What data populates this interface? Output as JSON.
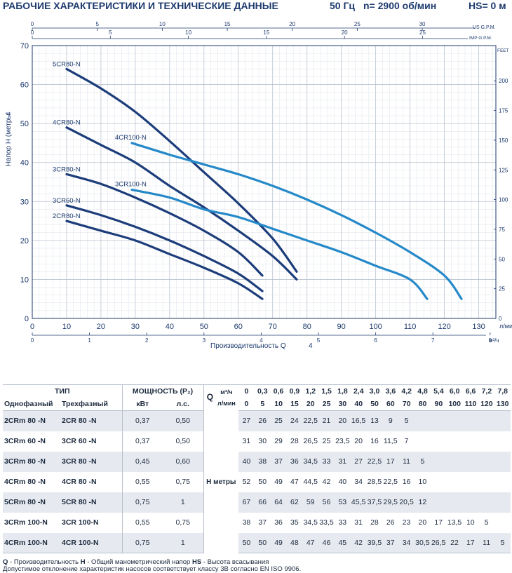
{
  "header": {
    "title": "РАБОЧИЕ ХАРАКТЕРИСТИКИ И ТЕХНИЧЕСКИЕ ДАННЫЕ",
    "freq": "50 Гц",
    "rpm": "n= 2900 об/мин",
    "hs": "HS= 0 м"
  },
  "chart_data": {
    "type": "line",
    "xlabel": "Производительность Q",
    "xlabel_suffix": "4",
    "ylabel": "Напор Н (метры",
    "ylabel_suffix": "4",
    "x_unit": "л/мин",
    "x2_unit": "м³/ч",
    "us_unit": "US G.P.M.",
    "imp_unit": "IMP G.P.M.",
    "feet_unit": "FEET",
    "xlim": [
      0,
      135
    ],
    "ylim": [
      0,
      70
    ],
    "x_ticks": [
      0,
      10,
      20,
      30,
      40,
      50,
      60,
      70,
      80,
      90,
      100,
      110,
      120,
      130
    ],
    "y_ticks": [
      0,
      10,
      20,
      30,
      40,
      50,
      60,
      70
    ],
    "m3h_ticks": [
      0,
      1,
      2,
      3,
      4,
      5,
      6,
      7,
      8
    ],
    "us_ticks": [
      0,
      5,
      10,
      15,
      20,
      25,
      30
    ],
    "imp_ticks": [
      0,
      5,
      10,
      15,
      20,
      25
    ],
    "feet_ticks": [
      0,
      25,
      50,
      75,
      100,
      125,
      150,
      175,
      200
    ],
    "series": [
      {
        "name": "5CR80-N",
        "color": "#1c3d7a",
        "x": [
          10,
          20,
          30,
          40,
          50,
          60,
          70,
          77
        ],
        "y": [
          64,
          59,
          53,
          45.5,
          37.5,
          29.5,
          20.5,
          12
        ]
      },
      {
        "name": "4CR80-N",
        "color": "#1c3d7a",
        "x": [
          10,
          20,
          30,
          40,
          50,
          60,
          70,
          77
        ],
        "y": [
          49,
          44.5,
          40,
          34,
          28.5,
          22.5,
          16,
          10
        ]
      },
      {
        "name": "3CR80-N",
        "color": "#1c3d7a",
        "x": [
          10,
          20,
          30,
          40,
          50,
          60,
          67
        ],
        "y": [
          37,
          34.5,
          31,
          27,
          22.5,
          17,
          11
        ]
      },
      {
        "name": "3CR60-N",
        "color": "#1c3d7a",
        "x": [
          10,
          20,
          30,
          40,
          50,
          60,
          67
        ],
        "y": [
          29,
          26.5,
          23.5,
          20,
          16,
          11.5,
          7
        ]
      },
      {
        "name": "2CR80-N",
        "color": "#1c3d7a",
        "x": [
          10,
          20,
          30,
          40,
          50,
          60,
          67
        ],
        "y": [
          25,
          22.5,
          20,
          16.5,
          13,
          9,
          5
        ]
      },
      {
        "name": "4CR100-N",
        "color": "#2589c9",
        "x": [
          29,
          40,
          50,
          60,
          70,
          80,
          90,
          100,
          110,
          120,
          125
        ],
        "y": [
          45,
          42,
          39.5,
          37,
          34,
          30.5,
          26.5,
          22,
          17,
          11,
          5
        ]
      },
      {
        "name": "3CR100-N",
        "color": "#2589c9",
        "x": [
          29,
          40,
          50,
          60,
          70,
          80,
          90,
          100,
          110,
          115
        ],
        "y": [
          33,
          31,
          28,
          26,
          23,
          20,
          17,
          13.5,
          10,
          5
        ]
      }
    ]
  },
  "table": {
    "type_header": "ТИП",
    "power_header": "МОЩНОСТЬ (P₂)",
    "q_label": "Q",
    "h_label": "H  метры",
    "m3h_unit": "м³/ч",
    "lmin_unit": "л/мин",
    "col_single": "Однофазный",
    "col_three": "Трехфазный",
    "col_kw": "кВт",
    "col_hp": "л.с.",
    "m3h": [
      "0",
      "0,3",
      "0,6",
      "0,9",
      "1,2",
      "1,5",
      "1,8",
      "2,4",
      "3,0",
      "3,6",
      "4,2",
      "4,8",
      "5,4",
      "6,0",
      "6,6",
      "7,2",
      "7,8"
    ],
    "lmin": [
      "0",
      "5",
      "10",
      "15",
      "20",
      "25",
      "30",
      "40",
      "50",
      "60",
      "70",
      "80",
      "90",
      "100",
      "110",
      "120",
      "130"
    ],
    "rows": [
      {
        "single": "2CRm 80  -N",
        "three": "2CR 80  -N",
        "kw": "0,37",
        "hp": "0,50",
        "h": [
          "27",
          "26",
          "25",
          "24",
          "22,5",
          "21",
          "20",
          "16,5",
          "13",
          "9",
          "5",
          "",
          "",
          "",
          "",
          "",
          ""
        ]
      },
      {
        "single": "3CRm 60  -N",
        "three": "3CR 60  -N",
        "kw": "0,37",
        "hp": "0,50",
        "h": [
          "31",
          "30",
          "29",
          "28",
          "26,5",
          "25",
          "23,5",
          "20",
          "16",
          "11,5",
          "7",
          "",
          "",
          "",
          "",
          "",
          ""
        ]
      },
      {
        "single": "3CRm 80  -N",
        "three": "3CR 80  -N",
        "kw": "0,45",
        "hp": "0,60",
        "h": [
          "40",
          "38",
          "37",
          "36",
          "34,5",
          "33",
          "31",
          "27",
          "22,5",
          "17",
          "11",
          "5",
          "",
          "",
          "",
          "",
          ""
        ]
      },
      {
        "single": "4CRm 80  -N",
        "three": "4CR 80  -N",
        "kw": "0,55",
        "hp": "0,75",
        "h": [
          "52",
          "50",
          "49",
          "47",
          "44,5",
          "42",
          "40",
          "34",
          "28,5",
          "22,5",
          "16",
          "10",
          "",
          "",
          "",
          "",
          ""
        ]
      },
      {
        "single": "5CRm 80  -N",
        "three": "5CR 80  -N",
        "kw": "0,75",
        "hp": "1",
        "h": [
          "67",
          "66",
          "64",
          "62",
          "59",
          "56",
          "53",
          "45,5",
          "37,5",
          "29,5",
          "20,5",
          "12",
          "",
          "",
          "",
          "",
          ""
        ]
      },
      {
        "single": "3CRm 100-N",
        "three": "3CR 100-N",
        "kw": "0,55",
        "hp": "0,75",
        "h": [
          "38",
          "37",
          "36",
          "35",
          "34,5",
          "33,5",
          "33",
          "31",
          "28",
          "26",
          "23",
          "20",
          "17",
          "13,5",
          "10",
          "5",
          ""
        ]
      },
      {
        "single": "4CRm 100-N",
        "three": "4CR 100-N",
        "kw": "0,75",
        "hp": "1",
        "h": [
          "50",
          "50",
          "49",
          "48",
          "47",
          "46",
          "45",
          "42",
          "39,5",
          "37",
          "34",
          "30,5",
          "26,5",
          "22",
          "17",
          "11",
          "5"
        ]
      }
    ]
  },
  "footnote": {
    "q": "Q",
    "q_text": " - Производительность  ",
    "h": "H",
    "h_text": " - Общий манометрический напор  ",
    "hs": "HS",
    "hs_text": " - Высота всасывания",
    "line2": "Допустимое отклонение характеристик насосов соответствует классу 3В согласно EN ISO 9906."
  }
}
